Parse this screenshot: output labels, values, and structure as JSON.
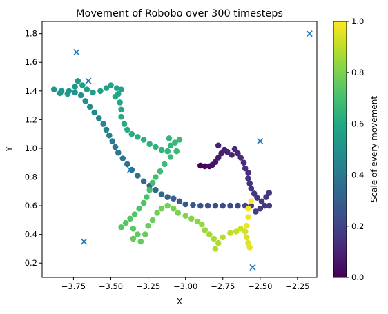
{
  "chart_data": {
    "type": "scatter",
    "title": "Movement of Robobo over 300 timesteps",
    "xlabel": "X",
    "ylabel": "Y",
    "xlim": [
      -3.96,
      -2.12
    ],
    "ylim": [
      0.1,
      1.885
    ],
    "x_ticks": [
      -3.75,
      -3.5,
      -3.25,
      -3.0,
      -2.75,
      -2.5,
      -2.25
    ],
    "x_tick_labels": [
      "−3.75",
      "−3.50",
      "−3.25",
      "−3.00",
      "−2.75",
      "−2.50",
      "−2.25"
    ],
    "y_ticks": [
      0.2,
      0.4,
      0.6,
      0.8,
      1.0,
      1.2,
      1.4,
      1.6,
      1.8
    ],
    "y_tick_labels": [
      "0.2",
      "0.4",
      "0.6",
      "0.8",
      "1.0",
      "1.2",
      "1.4",
      "1.6",
      "1.8"
    ],
    "colorbar": {
      "label": "Scale of every movement",
      "colormap": "viridis",
      "range": [
        0,
        1
      ],
      "ticks": [
        0.0,
        0.2,
        0.4,
        0.6,
        0.8,
        1.0
      ],
      "tick_labels": [
        "0.0",
        "0.2",
        "0.4",
        "0.6",
        "0.8",
        "1.0"
      ]
    },
    "marker_color": "#1f77b4",
    "markers": [
      [
        -3.73,
        1.67
      ],
      [
        -3.65,
        1.47
      ],
      [
        -3.37,
        0.85
      ],
      [
        -3.68,
        0.35
      ],
      [
        -2.5,
        1.05
      ],
      [
        -2.55,
        0.17
      ],
      [
        -2.17,
        1.8
      ]
    ],
    "path": [
      [
        -2.9,
        0.88,
        0.0
      ],
      [
        -2.87,
        0.875,
        0.015
      ],
      [
        -2.84,
        0.875,
        0.03
      ],
      [
        -2.82,
        0.885,
        0.045
      ],
      [
        -2.8,
        0.905,
        0.06
      ],
      [
        -2.78,
        0.935,
        0.07
      ],
      [
        -2.76,
        0.965,
        0.08
      ],
      [
        -2.74,
        0.99,
        0.09
      ],
      [
        -2.78,
        1.02,
        0.095
      ],
      [
        -2.72,
        0.975,
        0.1
      ],
      [
        -2.69,
        0.955,
        0.105
      ],
      [
        -2.67,
        0.995,
        0.11
      ],
      [
        -2.65,
        0.965,
        0.115
      ],
      [
        -2.63,
        0.935,
        0.12
      ],
      [
        -2.61,
        0.9,
        0.125
      ],
      [
        -2.6,
        0.86,
        0.13
      ],
      [
        -2.58,
        0.83,
        0.135
      ],
      [
        -2.58,
        0.79,
        0.14
      ],
      [
        -2.57,
        0.755,
        0.145
      ],
      [
        -2.56,
        0.72,
        0.15
      ],
      [
        -2.54,
        0.685,
        0.155
      ],
      [
        -2.52,
        0.655,
        0.16
      ],
      [
        -2.49,
        0.63,
        0.163
      ],
      [
        -2.46,
        0.66,
        0.166
      ],
      [
        -2.44,
        0.69,
        0.169
      ],
      [
        -2.47,
        0.6,
        0.172
      ],
      [
        -2.44,
        0.6,
        0.175
      ],
      [
        -2.5,
        0.58,
        0.18
      ],
      [
        -2.53,
        0.56,
        0.185
      ],
      [
        -2.56,
        0.6,
        0.19
      ],
      [
        -2.6,
        0.6,
        0.2
      ],
      [
        -2.65,
        0.6,
        0.21
      ],
      [
        -2.7,
        0.6,
        0.22
      ],
      [
        -2.75,
        0.6,
        0.23
      ],
      [
        -2.8,
        0.6,
        0.24
      ],
      [
        -2.85,
        0.6,
        0.25
      ],
      [
        -2.9,
        0.6,
        0.26
      ],
      [
        -2.95,
        0.605,
        0.27
      ],
      [
        -3.0,
        0.61,
        0.28
      ],
      [
        -3.04,
        0.63,
        0.29
      ],
      [
        -3.08,
        0.65,
        0.3
      ],
      [
        -3.12,
        0.66,
        0.31
      ],
      [
        -3.16,
        0.68,
        0.32
      ],
      [
        -3.2,
        0.71,
        0.33
      ],
      [
        -3.24,
        0.74,
        0.34
      ],
      [
        -3.28,
        0.77,
        0.35
      ],
      [
        -3.32,
        0.81,
        0.36
      ],
      [
        -3.36,
        0.85,
        0.37
      ],
      [
        -3.39,
        0.89,
        0.38
      ],
      [
        -3.42,
        0.93,
        0.39
      ],
      [
        -3.45,
        0.97,
        0.4
      ],
      [
        -3.47,
        1.01,
        0.41
      ],
      [
        -3.49,
        1.05,
        0.42
      ],
      [
        -3.51,
        1.09,
        0.43
      ],
      [
        -3.53,
        1.13,
        0.44
      ],
      [
        -3.55,
        1.17,
        0.45
      ],
      [
        -3.58,
        1.21,
        0.46
      ],
      [
        -3.61,
        1.25,
        0.47
      ],
      [
        -3.64,
        1.29,
        0.48
      ],
      [
        -3.67,
        1.33,
        0.49
      ],
      [
        -3.7,
        1.37,
        0.5
      ],
      [
        -3.74,
        1.39,
        0.505
      ],
      [
        -3.78,
        1.4,
        0.51
      ],
      [
        -3.83,
        1.4,
        0.515
      ],
      [
        -3.88,
        1.41,
        0.52
      ],
      [
        -3.84,
        1.385,
        0.525
      ],
      [
        -3.79,
        1.38,
        0.53
      ],
      [
        -3.74,
        1.43,
        0.535
      ],
      [
        -3.72,
        1.47,
        0.54
      ],
      [
        -3.69,
        1.44,
        0.545
      ],
      [
        -3.66,
        1.41,
        0.55
      ],
      [
        -3.62,
        1.39,
        0.555
      ],
      [
        -3.57,
        1.4,
        0.56
      ],
      [
        -3.53,
        1.42,
        0.565
      ],
      [
        -3.5,
        1.44,
        0.57
      ],
      [
        -3.46,
        1.42,
        0.575
      ],
      [
        -3.43,
        1.41,
        0.58
      ],
      [
        -3.45,
        1.38,
        0.585
      ],
      [
        -3.47,
        1.36,
        0.59
      ],
      [
        -3.44,
        1.32,
        0.595
      ],
      [
        -3.43,
        1.27,
        0.6
      ],
      [
        -3.43,
        1.22,
        0.605
      ],
      [
        -3.41,
        1.17,
        0.61
      ],
      [
        -3.39,
        1.13,
        0.615
      ],
      [
        -3.36,
        1.1,
        0.62
      ],
      [
        -3.32,
        1.08,
        0.625
      ],
      [
        -3.28,
        1.06,
        0.63
      ],
      [
        -3.24,
        1.03,
        0.635
      ],
      [
        -3.2,
        1.01,
        0.64
      ],
      [
        -3.16,
        0.99,
        0.645
      ],
      [
        -3.12,
        0.98,
        0.65
      ],
      [
        -3.1,
        1.02,
        0.655
      ],
      [
        -3.11,
        1.07,
        0.66
      ],
      [
        -3.07,
        1.04,
        0.665
      ],
      [
        -3.04,
        1.06,
        0.67
      ],
      [
        -3.06,
        0.98,
        0.675
      ],
      [
        -3.1,
        0.94,
        0.68
      ],
      [
        -3.14,
        0.89,
        0.685
      ],
      [
        -3.17,
        0.84,
        0.69
      ],
      [
        -3.2,
        0.8,
        0.695
      ],
      [
        -3.22,
        0.76,
        0.7
      ],
      [
        -3.24,
        0.71,
        0.705
      ],
      [
        -3.26,
        0.66,
        0.71
      ],
      [
        -3.28,
        0.62,
        0.715
      ],
      [
        -3.31,
        0.58,
        0.72
      ],
      [
        -3.34,
        0.54,
        0.725
      ],
      [
        -3.37,
        0.51,
        0.73
      ],
      [
        -3.4,
        0.48,
        0.735
      ],
      [
        -3.43,
        0.45,
        0.74
      ],
      [
        -3.35,
        0.44,
        0.745
      ],
      [
        -3.32,
        0.4,
        0.75
      ],
      [
        -3.35,
        0.37,
        0.755
      ],
      [
        -3.3,
        0.35,
        0.76
      ],
      [
        -3.27,
        0.4,
        0.765
      ],
      [
        -3.25,
        0.46,
        0.77
      ],
      [
        -3.22,
        0.5,
        0.775
      ],
      [
        -3.19,
        0.55,
        0.78
      ],
      [
        -3.16,
        0.58,
        0.785
      ],
      [
        -3.12,
        0.6,
        0.79
      ],
      [
        -3.08,
        0.58,
        0.795
      ],
      [
        -3.05,
        0.55,
        0.8
      ],
      [
        -3.0,
        0.53,
        0.81
      ],
      [
        -2.96,
        0.51,
        0.82
      ],
      [
        -2.92,
        0.49,
        0.83
      ],
      [
        -2.89,
        0.47,
        0.84
      ],
      [
        -2.87,
        0.43,
        0.85
      ],
      [
        -2.84,
        0.4,
        0.86
      ],
      [
        -2.81,
        0.37,
        0.87
      ],
      [
        -2.78,
        0.34,
        0.875
      ],
      [
        -2.8,
        0.3,
        0.88
      ],
      [
        -2.75,
        0.38,
        0.89
      ],
      [
        -2.7,
        0.41,
        0.9
      ],
      [
        -2.66,
        0.42,
        0.91
      ],
      [
        -2.63,
        0.44,
        0.92
      ],
      [
        -2.6,
        0.42,
        0.93
      ],
      [
        -2.59,
        0.38,
        0.94
      ],
      [
        -2.58,
        0.34,
        0.95
      ],
      [
        -2.57,
        0.31,
        0.96
      ],
      [
        -2.59,
        0.46,
        0.97
      ],
      [
        -2.58,
        0.52,
        0.98
      ],
      [
        -2.58,
        0.58,
        0.99
      ],
      [
        -2.56,
        0.63,
        1.0
      ]
    ]
  }
}
